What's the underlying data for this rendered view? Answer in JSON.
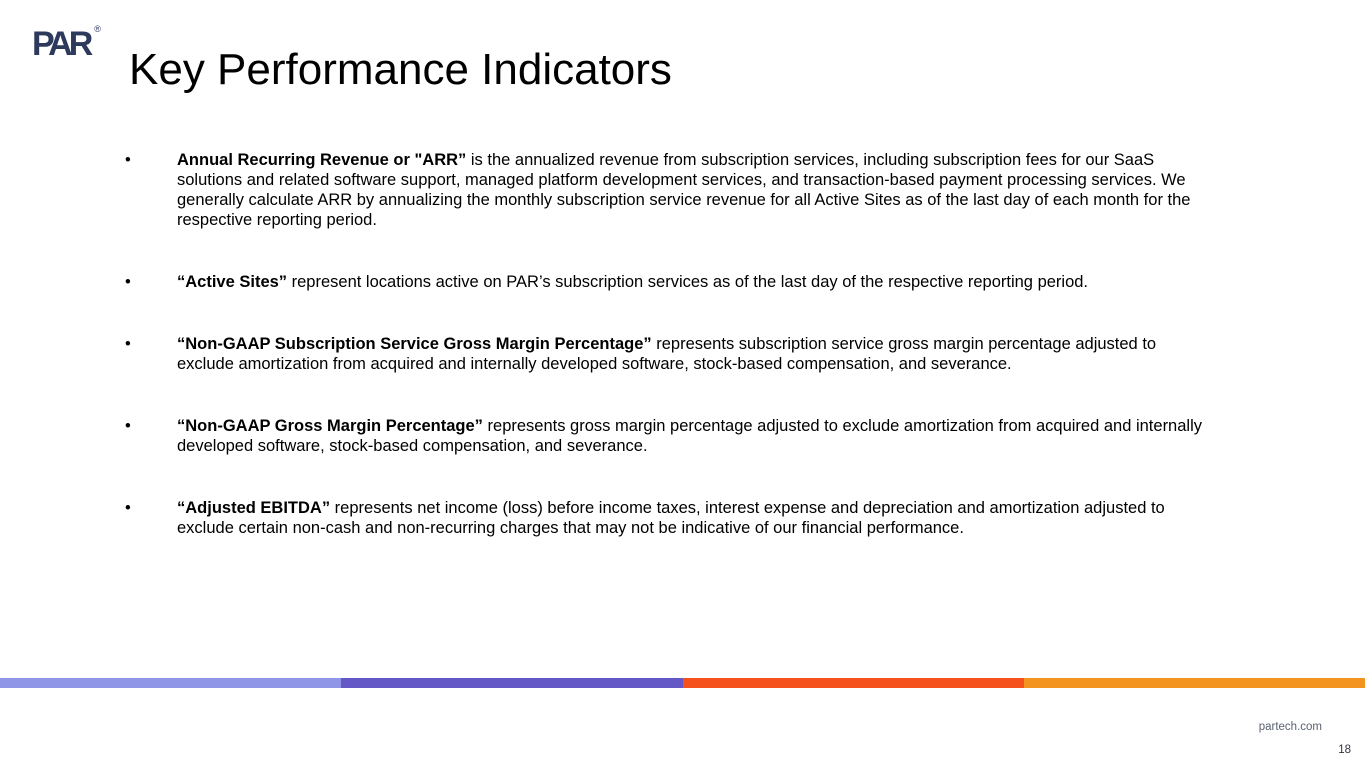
{
  "slide": {
    "logo": {
      "text": "PAR",
      "registered_mark": "®"
    },
    "title": "Key Performance Indicators",
    "bullet_marker": "•",
    "bullets": [
      {
        "bold": "Annual Recurring Revenue or \"ARR”",
        "text": " is the annualized revenue from subscription services, including subscription fees for our SaaS solutions and related software support, managed platform development services, and transaction-based payment processing services. We generally calculate ARR by annualizing the monthly subscription service revenue for all Active Sites as of the last day of each month for the respective reporting period."
      },
      {
        "bold": "“Active Sites”",
        "text": " represent locations active on PAR’s subscription services as of the last day of the respective reporting period."
      },
      {
        "bold": "“Non-GAAP Subscription Service Gross Margin Percentage”",
        "text": " represents subscription service gross margin percentage adjusted to exclude amortization from acquired and internally developed software, stock-based compensation, and severance."
      },
      {
        "bold": "“Non-GAAP Gross Margin Percentage”",
        "text": " represents gross margin percentage adjusted to exclude amortization from acquired and internally developed software, stock-based compensation, and severance."
      },
      {
        "bold": "“Adjusted EBITDA”",
        "text": " represents net income (loss) before income taxes, interest expense and depreciation and amortization adjusted to exclude certain non-cash and non-recurring charges that may not be indicative of our financial performance."
      }
    ]
  },
  "footer": {
    "url": "partech.com",
    "page_number": "18"
  },
  "theme": {
    "logo_color": "#2e3a5c",
    "stripe_colors": [
      "#8f96e8",
      "#6458c6",
      "#f4511c",
      "#f2941f"
    ]
  }
}
